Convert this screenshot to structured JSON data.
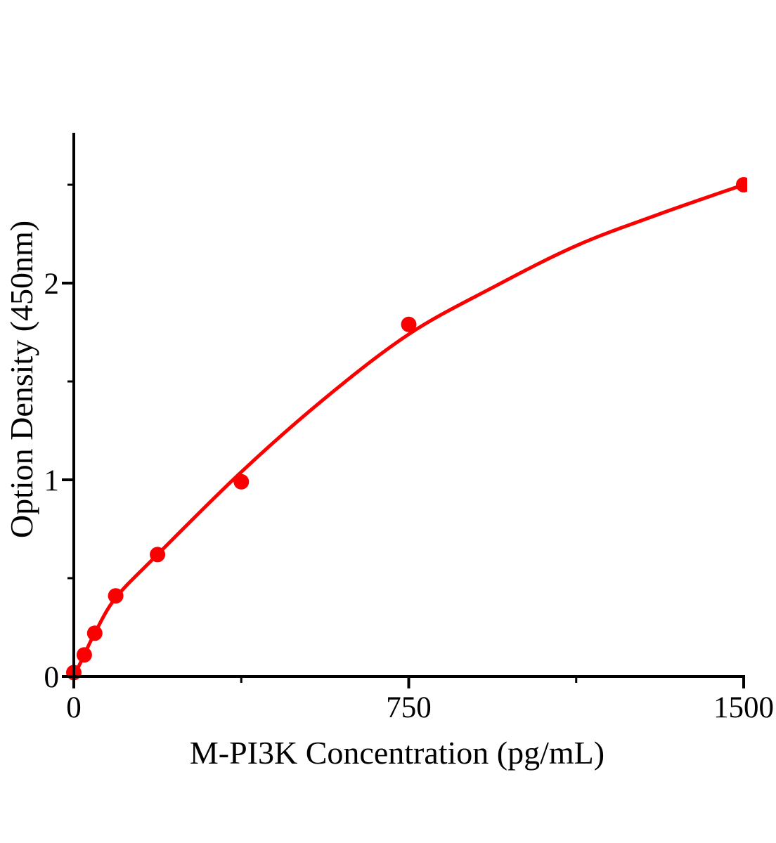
{
  "chart_data": {
    "type": "scatter",
    "title": "",
    "xlabel": "M-PI3K Concentration (pg/mL)",
    "ylabel": "Option Density (450nm)",
    "xlim": [
      0,
      1500
    ],
    "ylim": [
      0,
      2.76
    ],
    "grid": false,
    "legend": "none",
    "x_ticks_major": [
      0,
      750,
      1500
    ],
    "x_tick_labels": [
      "0",
      "750",
      "1500"
    ],
    "x_ticks_minor": [
      375,
      1125
    ],
    "y_ticks_major": [
      0,
      1,
      2
    ],
    "y_tick_labels": [
      "0",
      "1",
      "2"
    ],
    "y_ticks_minor": [
      0.5,
      1.5,
      2.5
    ],
    "points": [
      {
        "x": 0,
        "y": 0.02
      },
      {
        "x": 23.4,
        "y": 0.11
      },
      {
        "x": 46.9,
        "y": 0.22
      },
      {
        "x": 93.8,
        "y": 0.41
      },
      {
        "x": 187.5,
        "y": 0.62
      },
      {
        "x": 375,
        "y": 0.99
      },
      {
        "x": 750,
        "y": 1.79
      },
      {
        "x": 1500,
        "y": 2.5
      }
    ],
    "fit_curve": [
      [
        0,
        0.0
      ],
      [
        23.4,
        0.11
      ],
      [
        46.9,
        0.22
      ],
      [
        93.8,
        0.4
      ],
      [
        187.5,
        0.62
      ],
      [
        375,
        1.04
      ],
      [
        560,
        1.41
      ],
      [
        750,
        1.74
      ],
      [
        940,
        1.98
      ],
      [
        1125,
        2.19
      ],
      [
        1310,
        2.35
      ],
      [
        1500,
        2.5
      ]
    ],
    "colors": {
      "curve": "#fa0000",
      "point": "#fa0000",
      "axis": "#000000",
      "background": "#ffffff"
    },
    "marker": {
      "shape": "circle",
      "radius_px": 11
    }
  }
}
